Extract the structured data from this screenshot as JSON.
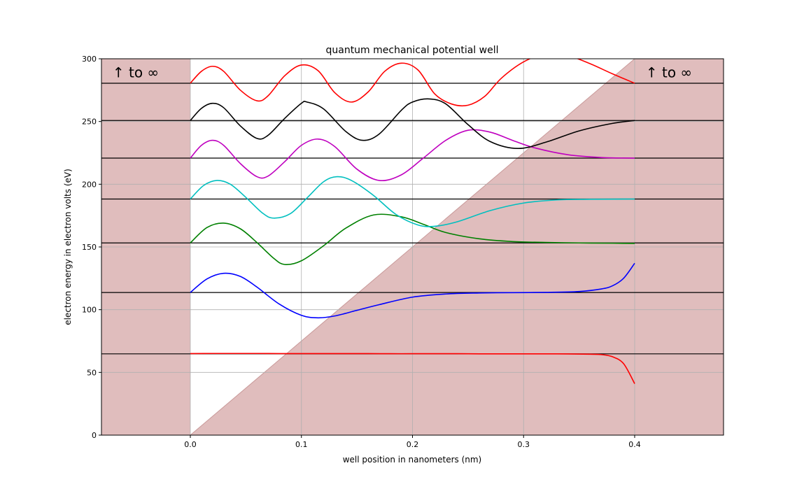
{
  "chart_data": {
    "type": "line",
    "title": "quantum mechanical potential well",
    "xlabel": "well position in nanometers (nm)",
    "ylabel": "electron energy in electron volts (eV)",
    "xlim": [
      -0.08,
      0.48
    ],
    "ylim": [
      0,
      300
    ],
    "x_ticks": [
      {
        "value": 0.0,
        "label": "0.0"
      },
      {
        "value": 0.1,
        "label": "0.1"
      },
      {
        "value": 0.2,
        "label": "0.2"
      },
      {
        "value": 0.3,
        "label": "0.3"
      },
      {
        "value": 0.4,
        "label": "0.4"
      }
    ],
    "y_ticks": [
      {
        "value": 0,
        "label": "0"
      },
      {
        "value": 50,
        "label": "50"
      },
      {
        "value": 100,
        "label": "100"
      },
      {
        "value": 150,
        "label": "150"
      },
      {
        "value": 200,
        "label": "200"
      },
      {
        "value": 250,
        "label": "250"
      },
      {
        "value": 300,
        "label": "300"
      }
    ],
    "grid": true,
    "annotations": [
      {
        "text": "↑  to ∞",
        "x": -0.07,
        "y": 289
      },
      {
        "text": "↑  to ∞",
        "x": 0.41,
        "y": 289
      }
    ],
    "potential": {
      "left_wall_x": [
        -0.08,
        0.0
      ],
      "right_wall_x": [
        0.4,
        0.48
      ],
      "ramp": [
        [
          0.0,
          0
        ],
        [
          0.4,
          300
        ]
      ],
      "fill_color": "#e0bdbd",
      "edge_color": "#c99a9a"
    },
    "energy_levels": [
      64.8,
      113.7,
      153.2,
      188.2,
      220.8,
      250.8,
      280.5
    ],
    "series": [
      {
        "color": "#ff0000",
        "x": [
          0.0,
          0.02,
          0.04,
          0.06,
          0.08,
          0.1,
          0.12,
          0.14,
          0.16,
          0.18,
          0.2,
          0.22,
          0.24,
          0.26,
          0.28,
          0.3,
          0.32,
          0.34,
          0.36,
          0.37,
          0.38,
          0.39,
          0.4
        ],
        "y": [
          65,
          65.1,
          65.1,
          65.1,
          65.0,
          65.0,
          65.0,
          65.0,
          65.0,
          64.9,
          64.9,
          64.9,
          64.9,
          64.8,
          64.8,
          64.8,
          64.8,
          64.7,
          64.5,
          64.2,
          62.5,
          57.0,
          41.0
        ]
      },
      {
        "color": "#0000ff",
        "x": [
          0.0,
          0.015,
          0.03,
          0.045,
          0.06,
          0.08,
          0.1,
          0.115,
          0.13,
          0.15,
          0.17,
          0.2,
          0.23,
          0.26,
          0.29,
          0.32,
          0.35,
          0.37,
          0.38,
          0.39,
          0.4
        ],
        "y": [
          113.7,
          124.5,
          129.0,
          126.5,
          118.0,
          104.5,
          95.5,
          93.5,
          95.0,
          99.5,
          104.0,
          110.0,
          112.5,
          113.3,
          113.6,
          113.8,
          114.5,
          116.5,
          119.0,
          125.0,
          137.0
        ]
      },
      {
        "color": "#008000",
        "x": [
          0.0,
          0.015,
          0.03,
          0.045,
          0.06,
          0.075,
          0.085,
          0.1,
          0.12,
          0.14,
          0.165,
          0.19,
          0.21,
          0.23,
          0.26,
          0.29,
          0.32,
          0.35,
          0.38,
          0.4
        ],
        "y": [
          153.2,
          165.5,
          169.0,
          164.5,
          153.5,
          141.0,
          136.0,
          139.0,
          151.0,
          165.0,
          175.5,
          174.0,
          168.0,
          161.5,
          156.5,
          154.3,
          153.6,
          153.2,
          153.0,
          152.8
        ]
      },
      {
        "color": "#00bfbf",
        "x": [
          0.0,
          0.012,
          0.024,
          0.036,
          0.05,
          0.065,
          0.075,
          0.09,
          0.105,
          0.12,
          0.132,
          0.145,
          0.165,
          0.185,
          0.205,
          0.22,
          0.24,
          0.27,
          0.3,
          0.33,
          0.36,
          0.4
        ],
        "y": [
          188.2,
          199.0,
          203.0,
          200.0,
          189.5,
          177.0,
          173.0,
          176.5,
          189.0,
          202.0,
          206.0,
          203.0,
          191.0,
          176.0,
          167.5,
          166.5,
          170.0,
          179.0,
          185.0,
          187.5,
          188.0,
          188.2
        ]
      },
      {
        "color": "#bf00bf",
        "x": [
          0.0,
          0.01,
          0.02,
          0.03,
          0.045,
          0.06,
          0.07,
          0.085,
          0.1,
          0.115,
          0.13,
          0.15,
          0.17,
          0.19,
          0.21,
          0.23,
          0.25,
          0.27,
          0.29,
          0.31,
          0.34,
          0.37,
          0.4
        ],
        "y": [
          220.8,
          231.0,
          235.0,
          231.0,
          216.5,
          206.0,
          206.5,
          218.0,
          231.0,
          236.0,
          230.0,
          212.0,
          203.0,
          207.5,
          221.0,
          235.0,
          243.0,
          241.5,
          235.0,
          229.0,
          223.5,
          221.3,
          220.8
        ]
      },
      {
        "color": "#000000",
        "x": [
          0.0,
          0.01,
          0.02,
          0.03,
          0.045,
          0.06,
          0.07,
          0.085,
          0.1,
          0.105,
          0.12,
          0.14,
          0.155,
          0.17,
          0.19,
          0.2,
          0.215,
          0.23,
          0.25,
          0.27,
          0.295,
          0.32,
          0.35,
          0.38,
          0.4
        ],
        "y": [
          250.8,
          260.5,
          264.5,
          261.0,
          246.5,
          236.5,
          239.0,
          252.5,
          264.5,
          265.5,
          260.0,
          242.0,
          235.0,
          240.0,
          259.0,
          265.5,
          268.0,
          264.0,
          247.5,
          234.0,
          228.5,
          233.5,
          242.5,
          248.5,
          250.8
        ]
      },
      {
        "color": "#ff0000",
        "x": [
          0.0,
          0.01,
          0.02,
          0.03,
          0.045,
          0.06,
          0.07,
          0.085,
          0.1,
          0.115,
          0.13,
          0.145,
          0.16,
          0.175,
          0.19,
          0.205,
          0.22,
          0.235,
          0.25,
          0.265,
          0.28,
          0.3,
          0.32,
          0.34,
          0.36,
          0.38,
          0.4
        ],
        "y": [
          280.5,
          290.0,
          294.0,
          290.0,
          275.0,
          266.5,
          270.5,
          286.5,
          295.0,
          290.5,
          273.0,
          265.5,
          273.5,
          290.0,
          296.5,
          291.0,
          272.0,
          264.0,
          263.0,
          270.0,
          284.5,
          297.5,
          304.0,
          302.5,
          296.0,
          288.0,
          280.5
        ]
      }
    ]
  }
}
